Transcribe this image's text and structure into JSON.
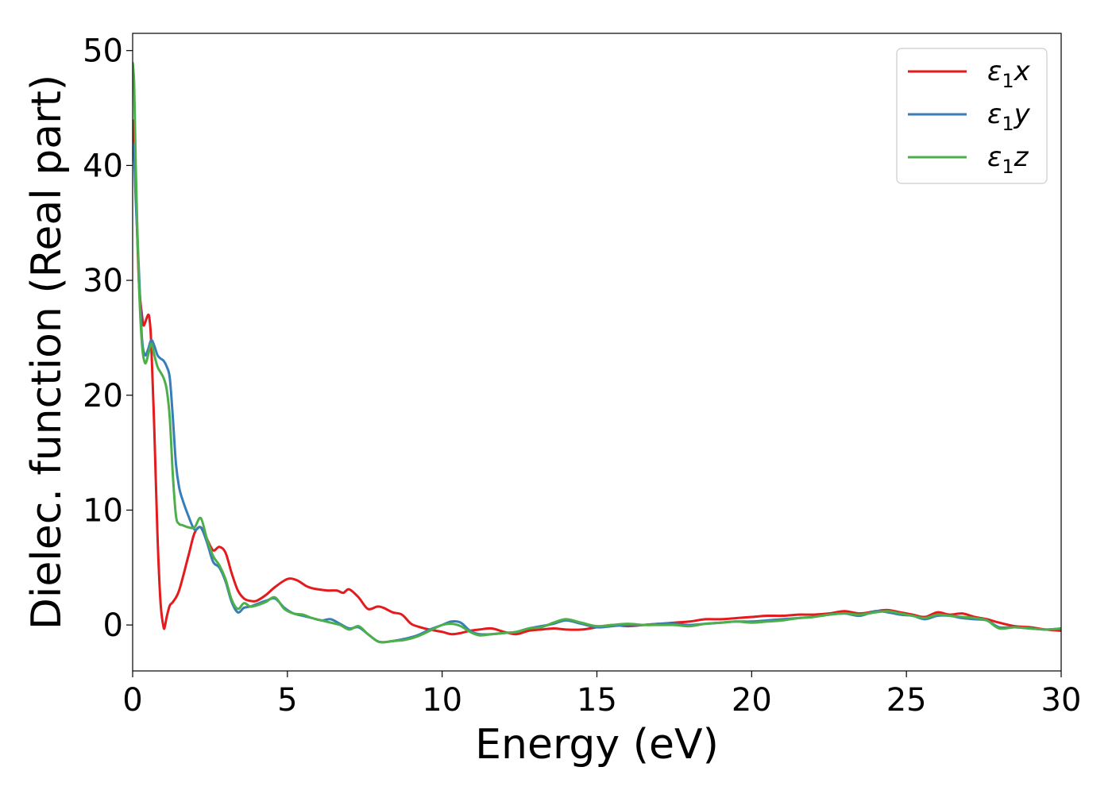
{
  "chart_data": {
    "type": "line",
    "xlabel": "Energy (eV)",
    "ylabel": "Dielec. function (Real part)",
    "xlim": [
      0,
      30
    ],
    "ylim": [
      -4,
      51.5
    ],
    "xticks": [
      0,
      5,
      10,
      15,
      20,
      25,
      30
    ],
    "xtick_labels": [
      "0",
      "5",
      "10",
      "15",
      "20",
      "25",
      "30"
    ],
    "yticks": [
      0,
      10,
      20,
      30,
      40,
      50
    ],
    "ytick_labels": [
      "0",
      "10",
      "20",
      "30",
      "40",
      "50"
    ],
    "grid": false,
    "legend_position": "top-right",
    "series": [
      {
        "name": "ε1x",
        "legend_base": "ε",
        "legend_sub": "1",
        "legend_suffix": "x",
        "color": "#e41a1c",
        "x": [
          0.0,
          0.1,
          0.2,
          0.3,
          0.35,
          0.4,
          0.5,
          0.55,
          0.6,
          0.7,
          0.8,
          0.9,
          1.0,
          1.05,
          1.1,
          1.2,
          1.3,
          1.5,
          1.8,
          2.0,
          2.2,
          2.4,
          2.6,
          2.8,
          3.0,
          3.2,
          3.4,
          3.6,
          3.8,
          4.0,
          4.3,
          4.6,
          5.0,
          5.3,
          5.6,
          5.8,
          6.0,
          6.3,
          6.6,
          6.8,
          7.0,
          7.3,
          7.6,
          7.9,
          8.1,
          8.4,
          8.7,
          9.0,
          9.3,
          9.6,
          10.0,
          10.3,
          10.6,
          10.9,
          11.2,
          11.6,
          12.0,
          12.4,
          12.8,
          13.2,
          13.6,
          14.0,
          14.5,
          15.0,
          15.5,
          16.0,
          16.5,
          17.0,
          17.5,
          18.0,
          18.5,
          19.0,
          19.5,
          20.0,
          20.5,
          21.0,
          21.5,
          22.0,
          22.5,
          23.0,
          23.5,
          24.0,
          24.4,
          24.8,
          25.2,
          25.6,
          26.0,
          26.4,
          26.8,
          27.2,
          27.6,
          28.0,
          28.5,
          29.0,
          29.5,
          30.0
        ],
        "y": [
          44.0,
          38.0,
          30.0,
          27.0,
          26.1,
          26.3,
          27.0,
          26.5,
          24.5,
          17.0,
          8.0,
          2.0,
          -0.2,
          0.0,
          0.7,
          1.7,
          2.0,
          3.0,
          6.0,
          8.0,
          8.5,
          7.5,
          6.5,
          6.8,
          6.3,
          4.5,
          3.0,
          2.3,
          2.1,
          2.1,
          2.6,
          3.3,
          4.0,
          3.9,
          3.4,
          3.2,
          3.1,
          3.0,
          3.0,
          2.8,
          3.1,
          2.4,
          1.4,
          1.6,
          1.5,
          1.1,
          0.9,
          0.1,
          -0.2,
          -0.4,
          -0.6,
          -0.8,
          -0.7,
          -0.5,
          -0.4,
          -0.3,
          -0.6,
          -0.8,
          -0.5,
          -0.4,
          -0.3,
          -0.4,
          -0.4,
          -0.2,
          0.0,
          -0.1,
          0.0,
          0.1,
          0.2,
          0.3,
          0.5,
          0.5,
          0.6,
          0.7,
          0.8,
          0.8,
          0.9,
          0.9,
          1.0,
          1.2,
          1.0,
          1.2,
          1.3,
          1.1,
          0.9,
          0.7,
          1.1,
          0.9,
          1.0,
          0.7,
          0.5,
          0.2,
          -0.1,
          -0.2,
          -0.4,
          -0.5
        ]
      },
      {
        "name": "ε1y",
        "legend_base": "ε",
        "legend_sub": "1",
        "legend_suffix": "y",
        "color": "#377eb8",
        "x": [
          0.0,
          0.05,
          0.1,
          0.2,
          0.3,
          0.4,
          0.5,
          0.6,
          0.7,
          0.8,
          0.9,
          1.0,
          1.1,
          1.2,
          1.3,
          1.4,
          1.5,
          1.6,
          1.8,
          2.0,
          2.2,
          2.4,
          2.6,
          2.8,
          3.0,
          3.2,
          3.4,
          3.6,
          3.8,
          4.0,
          4.3,
          4.6,
          4.9,
          5.2,
          5.5,
          5.8,
          6.1,
          6.4,
          6.7,
          7.0,
          7.3,
          7.6,
          7.9,
          8.1,
          8.4,
          8.8,
          9.2,
          9.6,
          10.0,
          10.3,
          10.6,
          10.9,
          11.2,
          11.6,
          12.0,
          12.4,
          12.8,
          13.2,
          13.6,
          14.0,
          14.5,
          15.0,
          15.5,
          16.0,
          16.5,
          17.0,
          17.5,
          18.0,
          18.5,
          19.0,
          19.5,
          20.0,
          20.5,
          21.0,
          21.5,
          22.0,
          22.5,
          23.0,
          23.5,
          24.0,
          24.4,
          24.8,
          25.2,
          25.6,
          26.0,
          26.4,
          26.8,
          27.2,
          27.6,
          28.0,
          28.5,
          29.0,
          29.5,
          30.0
        ],
        "y": [
          42.0,
          41.0,
          37.0,
          31.0,
          25.0,
          23.5,
          24.0,
          24.8,
          24.3,
          23.5,
          23.2,
          23.0,
          22.5,
          21.5,
          18.0,
          14.0,
          12.0,
          11.0,
          9.5,
          8.3,
          8.5,
          7.2,
          5.5,
          5.0,
          3.8,
          2.0,
          1.1,
          1.5,
          1.6,
          1.8,
          2.1,
          2.3,
          1.5,
          1.0,
          0.8,
          0.6,
          0.4,
          0.5,
          0.1,
          -0.3,
          -0.2,
          -0.8,
          -1.4,
          -1.5,
          -1.4,
          -1.2,
          -0.9,
          -0.4,
          0.0,
          0.3,
          0.2,
          -0.5,
          -0.8,
          -0.8,
          -0.7,
          -0.6,
          -0.3,
          -0.1,
          0.1,
          0.4,
          0.1,
          -0.2,
          -0.1,
          0.0,
          0.0,
          0.1,
          0.1,
          0.0,
          0.1,
          0.2,
          0.3,
          0.3,
          0.4,
          0.5,
          0.6,
          0.7,
          0.9,
          1.0,
          0.8,
          1.2,
          1.1,
          0.9,
          0.8,
          0.5,
          0.8,
          0.8,
          0.6,
          0.5,
          0.4,
          -0.2,
          -0.2,
          -0.3,
          -0.4,
          -0.3
        ]
      },
      {
        "name": "ε1z",
        "legend_base": "ε",
        "legend_sub": "1",
        "legend_suffix": "z",
        "color": "#4daf4a",
        "x": [
          0.0,
          0.05,
          0.1,
          0.2,
          0.3,
          0.4,
          0.5,
          0.6,
          0.7,
          0.8,
          0.9,
          1.0,
          1.1,
          1.2,
          1.3,
          1.4,
          1.5,
          1.6,
          1.8,
          2.0,
          2.2,
          2.4,
          2.6,
          2.8,
          3.0,
          3.2,
          3.4,
          3.6,
          3.8,
          4.0,
          4.3,
          4.6,
          4.9,
          5.2,
          5.5,
          5.8,
          6.1,
          6.4,
          6.7,
          7.0,
          7.3,
          7.6,
          7.9,
          8.1,
          8.4,
          8.8,
          9.2,
          9.6,
          10.0,
          10.3,
          10.6,
          10.9,
          11.2,
          11.6,
          12.0,
          12.4,
          12.8,
          13.2,
          13.6,
          14.0,
          14.5,
          15.0,
          15.5,
          16.0,
          16.5,
          17.0,
          17.5,
          18.0,
          18.5,
          19.0,
          19.5,
          20.0,
          20.5,
          21.0,
          21.5,
          22.0,
          22.5,
          23.0,
          23.5,
          24.0,
          24.4,
          24.8,
          25.2,
          25.6,
          26.0,
          26.4,
          26.8,
          27.2,
          27.6,
          28.0,
          28.5,
          29.0,
          29.5,
          30.0
        ],
        "y": [
          49.0,
          47.0,
          40.0,
          30.0,
          24.5,
          22.8,
          23.5,
          24.5,
          23.5,
          22.5,
          22.0,
          21.5,
          20.5,
          18.0,
          13.0,
          9.5,
          8.8,
          8.7,
          8.5,
          8.5,
          9.3,
          7.5,
          6.0,
          5.2,
          4.0,
          2.2,
          1.4,
          1.9,
          1.6,
          1.7,
          2.0,
          2.4,
          1.4,
          1.0,
          0.9,
          0.6,
          0.4,
          0.2,
          0.0,
          -0.4,
          -0.1,
          -0.8,
          -1.4,
          -1.5,
          -1.4,
          -1.3,
          -1.0,
          -0.5,
          0.0,
          0.1,
          -0.1,
          -0.6,
          -0.9,
          -0.8,
          -0.7,
          -0.6,
          -0.3,
          -0.2,
          0.2,
          0.5,
          0.2,
          -0.1,
          0.0,
          0.1,
          0.0,
          0.0,
          0.0,
          -0.1,
          0.1,
          0.2,
          0.3,
          0.2,
          0.3,
          0.4,
          0.6,
          0.7,
          0.9,
          1.0,
          0.9,
          1.1,
          1.2,
          1.0,
          0.8,
          0.6,
          0.9,
          0.8,
          0.7,
          0.6,
          0.4,
          -0.3,
          -0.2,
          -0.3,
          -0.4,
          -0.3
        ]
      }
    ]
  }
}
